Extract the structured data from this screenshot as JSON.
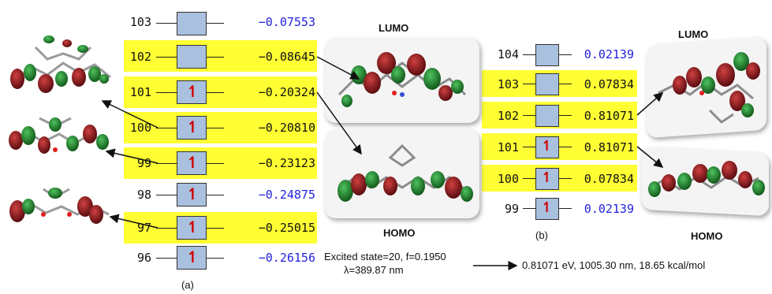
{
  "panel_a": {
    "label": "(a)",
    "levels": [
      {
        "index": "103",
        "energy": "−0.07553",
        "highlight": false,
        "occupied": false
      },
      {
        "index": "102",
        "energy": "−0.08645",
        "highlight": true,
        "occupied": false
      },
      {
        "index": "101",
        "energy": "−0.20324",
        "highlight": true,
        "occupied": true
      },
      {
        "index": "100",
        "energy": "−0.20810",
        "highlight": true,
        "occupied": true
      },
      {
        "index": "99",
        "energy": "−0.23123",
        "highlight": true,
        "occupied": true
      },
      {
        "index": "98",
        "energy": "−0.24875",
        "highlight": false,
        "occupied": true
      },
      {
        "index": "97",
        "energy": "−0.25015",
        "highlight": true,
        "occupied": true
      },
      {
        "index": "96",
        "energy": "−0.26156",
        "highlight": false,
        "occupied": true
      }
    ],
    "lumo_label": "LUMO",
    "homo_label": "HOMO",
    "excited_state": "Excited state=20, f=0.1950",
    "wavelength": "λ=389.87 nm"
  },
  "panel_b": {
    "label": "(b)",
    "levels": [
      {
        "index": "104",
        "energy": "0.02139",
        "highlight": false,
        "occupied": false
      },
      {
        "index": "103",
        "energy": "0.07834",
        "highlight": true,
        "occupied": false
      },
      {
        "index": "102",
        "energy": "0.81071",
        "highlight": true,
        "occupied": false
      },
      {
        "index": "101",
        "energy": "0.81071",
        "highlight": true,
        "occupied": true
      },
      {
        "index": "100",
        "energy": "0.07834",
        "highlight": true,
        "occupied": true
      },
      {
        "index": "99",
        "energy": "0.02139",
        "highlight": false,
        "occupied": true
      }
    ],
    "lumo_label": "LUMO",
    "homo_label": "HOMO",
    "transition": "0.81071 eV, 1005.30 nm, 18.65 kcal/mol"
  },
  "colors": {
    "highlight": "#ffff33",
    "box": "#a9c0de",
    "energy_blue": "#2222dd",
    "electron_arrow": "#d00000",
    "lobe_red": "#7a1418",
    "lobe_green": "#1f7a2a"
  }
}
